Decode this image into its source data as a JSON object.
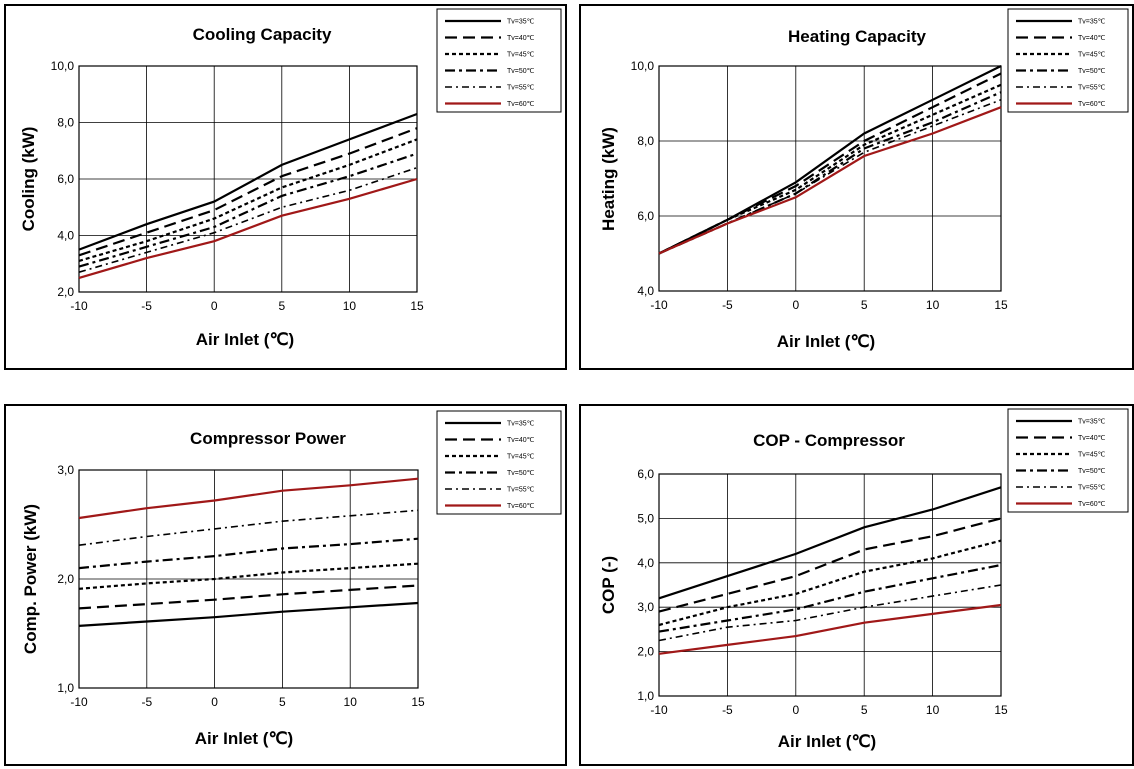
{
  "chart_data": [
    {
      "type": "line",
      "title": "Cooling Capacity",
      "xlabel": "Air Inlet (℃)",
      "ylabel": "Cooling (kW)",
      "x": [
        -10,
        -5,
        0,
        5,
        10,
        15
      ],
      "xticks": [
        "-10",
        "-5",
        "0",
        "5",
        "10",
        "15"
      ],
      "yticks": [
        "2,0",
        "4,0",
        "6,0",
        "8,0",
        "10,0"
      ],
      "ylim": [
        2,
        10
      ],
      "legend_position": "top-right",
      "series": [
        {
          "name": "Tv=35℃",
          "values": [
            3.5,
            4.4,
            5.2,
            6.5,
            7.4,
            8.3
          ]
        },
        {
          "name": "Tv=40℃",
          "values": [
            3.3,
            4.1,
            4.9,
            6.1,
            6.9,
            7.8
          ]
        },
        {
          "name": "Tv=45℃",
          "values": [
            3.1,
            3.8,
            4.6,
            5.7,
            6.5,
            7.4
          ]
        },
        {
          "name": "Tv=50℃",
          "values": [
            2.9,
            3.6,
            4.3,
            5.4,
            6.1,
            6.9
          ]
        },
        {
          "name": "Tv=55℃",
          "values": [
            2.7,
            3.4,
            4.1,
            5.0,
            5.6,
            6.4
          ]
        },
        {
          "name": "Tv=60℃",
          "values": [
            2.5,
            3.2,
            3.8,
            4.7,
            5.3,
            6.0
          ]
        }
      ]
    },
    {
      "type": "line",
      "title": "Heating Capacity",
      "xlabel": "Air Inlet (℃)",
      "ylabel": "Heating (kW)",
      "x": [
        -10,
        -5,
        0,
        5,
        10,
        15
      ],
      "xticks": [
        "-10",
        "-5",
        "0",
        "5",
        "10",
        "15"
      ],
      "yticks": [
        "4,0",
        "6,0",
        "8,0",
        "10,0"
      ],
      "ylim": [
        4,
        10
      ],
      "legend_position": "top-right",
      "series": [
        {
          "name": "Tv=35℃",
          "values": [
            5.0,
            5.9,
            6.9,
            8.2,
            9.1,
            10.0
          ]
        },
        {
          "name": "Tv=40℃",
          "values": [
            5.0,
            5.9,
            6.8,
            8.0,
            8.9,
            9.8
          ]
        },
        {
          "name": "Tv=45℃",
          "values": [
            5.0,
            5.9,
            6.7,
            7.9,
            8.7,
            9.5
          ]
        },
        {
          "name": "Tv=50℃",
          "values": [
            5.0,
            5.8,
            6.6,
            7.8,
            8.5,
            9.3
          ]
        },
        {
          "name": "Tv=55℃",
          "values": [
            5.0,
            5.8,
            6.6,
            7.7,
            8.4,
            9.1
          ]
        },
        {
          "name": "Tv=60℃",
          "values": [
            5.0,
            5.8,
            6.5,
            7.6,
            8.2,
            8.9
          ]
        }
      ]
    },
    {
      "type": "line",
      "title": "Compressor Power",
      "xlabel": "Air Inlet (℃)",
      "ylabel": "Comp. Power (kW)",
      "x": [
        -10,
        -5,
        0,
        5,
        10,
        15
      ],
      "xticks": [
        "-10",
        "-5",
        "0",
        "5",
        "10",
        "15"
      ],
      "yticks": [
        "1,0",
        "2,0",
        "3,0"
      ],
      "ylim": [
        1,
        3
      ],
      "legend_position": "top-right",
      "series": [
        {
          "name": "Tv=35℃",
          "values": [
            1.57,
            1.61,
            1.65,
            1.7,
            1.74,
            1.78
          ]
        },
        {
          "name": "Tv=40℃",
          "values": [
            1.73,
            1.77,
            1.81,
            1.86,
            1.9,
            1.94
          ]
        },
        {
          "name": "Tv=45℃",
          "values": [
            1.91,
            1.96,
            2.0,
            2.06,
            2.1,
            2.14
          ]
        },
        {
          "name": "Tv=50℃",
          "values": [
            2.1,
            2.16,
            2.21,
            2.28,
            2.32,
            2.37
          ]
        },
        {
          "name": "Tv=55℃",
          "values": [
            2.31,
            2.39,
            2.46,
            2.53,
            2.58,
            2.63
          ]
        },
        {
          "name": "Tv=60℃",
          "values": [
            2.56,
            2.65,
            2.72,
            2.81,
            2.86,
            2.92
          ]
        }
      ]
    },
    {
      "type": "line",
      "title": "COP - Compressor",
      "xlabel": "Air Inlet (℃)",
      "ylabel": "COP (-)",
      "x": [
        -10,
        -5,
        0,
        5,
        10,
        15
      ],
      "xticks": [
        "-10",
        "-5",
        "0",
        "5",
        "10",
        "15"
      ],
      "yticks": [
        "1,0",
        "2,0",
        "3,0",
        "4,0",
        "5,0",
        "6,0"
      ],
      "ylim": [
        1,
        6
      ],
      "legend_position": "top-right",
      "series": [
        {
          "name": "Tv=35℃",
          "values": [
            3.2,
            3.7,
            4.2,
            4.8,
            5.2,
            5.7
          ]
        },
        {
          "name": "Tv=40℃",
          "values": [
            2.9,
            3.3,
            3.7,
            4.3,
            4.6,
            5.0
          ]
        },
        {
          "name": "Tv=45℃",
          "values": [
            2.6,
            3.0,
            3.3,
            3.8,
            4.1,
            4.5
          ]
        },
        {
          "name": "Tv=50℃",
          "values": [
            2.45,
            2.7,
            2.95,
            3.35,
            3.65,
            3.95
          ]
        },
        {
          "name": "Tv=55℃",
          "values": [
            2.25,
            2.55,
            2.7,
            3.0,
            3.25,
            3.5
          ]
        },
        {
          "name": "Tv=60℃",
          "values": [
            1.95,
            2.15,
            2.35,
            2.65,
            2.85,
            3.05
          ]
        }
      ]
    }
  ],
  "series_styles": [
    {
      "color": "#000000",
      "dash": "",
      "width": 2.2
    },
    {
      "color": "#000000",
      "dash": "12 6",
      "width": 2.2
    },
    {
      "color": "#000000",
      "dash": "4 3",
      "width": 2.2
    },
    {
      "color": "#000000",
      "dash": "10 4 3 4",
      "width": 2.2
    },
    {
      "color": "#000000",
      "dash": "7 4 2 4",
      "width": 1.6
    },
    {
      "color": "#a01818",
      "dash": "",
      "width": 2.2
    }
  ]
}
